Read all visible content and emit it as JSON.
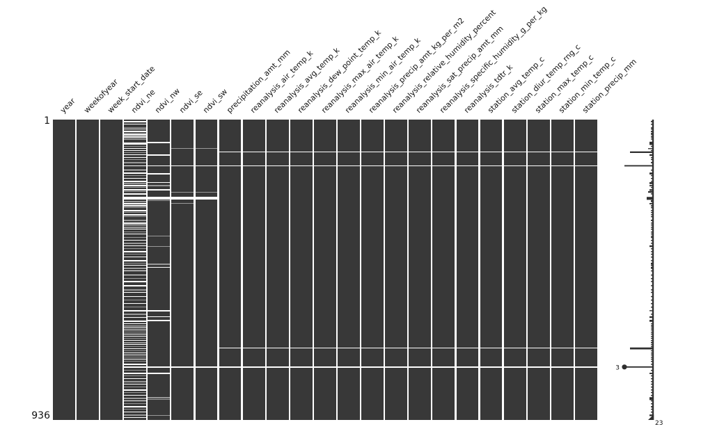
{
  "chart_data": {
    "type": "heatmap",
    "subtype": "missingno-missing-data-matrix",
    "title": "",
    "n_rows": 936,
    "n_cols": 23,
    "row_start_label": "1",
    "row_end_label": "936",
    "columns": [
      "year",
      "weekofyear",
      "week_start_date",
      "ndvi_ne",
      "ndvi_nw",
      "ndvi_se",
      "ndvi_sw",
      "precipitation_amt_mm",
      "reanalysis_air_temp_k",
      "reanalysis_avg_temp_k",
      "reanalysis_dew_point_temp_k",
      "reanalysis_max_air_temp_k",
      "reanalysis_min_air_temp_k",
      "reanalysis_precip_amt_kg_per_m2",
      "reanalysis_relative_humidity_percent",
      "reanalysis_sat_precip_amt_mm",
      "reanalysis_specific_humidity_g_per_kg",
      "reanalysis_tdtr_k",
      "station_avg_temp_c",
      "station_diur_temp_rng_c",
      "station_max_temp_c",
      "station_min_temp_c",
      "station_precip_mm"
    ],
    "colors": {
      "present": "#383838",
      "missing_white": "#ffffff",
      "missing_gray": "#999999",
      "spark": "#2f2f2f",
      "label": "#111111",
      "background": "#ffffff"
    },
    "sparkline": {
      "min_non_null_label": "3",
      "total_cols_label": "23",
      "min_row": 771,
      "legend": "non-null values per row; baseline = all 23 present"
    },
    "stripes": {
      "ndvi_ne": [
        [
          4,
          4,
          "w"
        ],
        [
          13,
          3,
          "w"
        ],
        [
          24,
          3,
          "g"
        ],
        [
          28,
          3,
          "w"
        ],
        [
          35,
          4,
          "w"
        ],
        [
          41,
          4,
          "g"
        ],
        [
          46,
          3,
          "w"
        ],
        [
          52,
          4,
          "w"
        ],
        [
          59,
          3,
          "g"
        ],
        [
          72,
          4,
          "w"
        ],
        [
          76,
          3,
          "w"
        ],
        [
          82,
          3,
          "g"
        ],
        [
          89,
          3,
          "w"
        ],
        [
          95,
          3,
          "w"
        ],
        [
          102,
          2,
          "g"
        ],
        [
          108,
          3,
          "w"
        ],
        [
          117,
          3,
          "w"
        ],
        [
          123,
          3,
          "g"
        ],
        [
          132,
          4,
          "g"
        ],
        [
          156,
          3,
          "w"
        ],
        [
          165,
          4,
          "w"
        ],
        [
          173,
          3,
          "g"
        ],
        [
          182,
          3,
          "w"
        ],
        [
          191,
          3,
          "w"
        ],
        [
          197,
          4,
          "g"
        ],
        [
          204,
          4,
          "w"
        ],
        [
          210,
          3,
          "g"
        ],
        [
          217,
          5,
          "w"
        ],
        [
          223,
          3,
          "g"
        ],
        [
          230,
          3,
          "w"
        ],
        [
          254,
          3,
          "g"
        ],
        [
          260,
          4,
          "w"
        ],
        [
          267,
          4,
          "w"
        ],
        [
          273,
          3,
          "g"
        ],
        [
          282,
          3,
          "w"
        ],
        [
          288,
          3,
          "g"
        ],
        [
          295,
          3,
          "w"
        ],
        [
          301,
          3,
          "g"
        ],
        [
          312,
          4,
          "g"
        ],
        [
          321,
          3,
          "w"
        ],
        [
          327,
          3,
          "w"
        ],
        [
          334,
          3,
          "g"
        ],
        [
          340,
          3,
          "w"
        ],
        [
          349,
          3,
          "g"
        ],
        [
          355,
          3,
          "w"
        ],
        [
          366,
          3,
          "g"
        ],
        [
          375,
          3,
          "w"
        ],
        [
          384,
          3,
          "g"
        ],
        [
          392,
          3,
          "w"
        ],
        [
          401,
          3,
          "g"
        ],
        [
          410,
          3,
          "w"
        ],
        [
          418,
          3,
          "g"
        ],
        [
          427,
          3,
          "w"
        ],
        [
          438,
          3,
          "w"
        ],
        [
          446,
          3,
          "g"
        ],
        [
          453,
          3,
          "w"
        ],
        [
          462,
          3,
          "g"
        ],
        [
          470,
          3,
          "w"
        ],
        [
          483,
          3,
          "w"
        ],
        [
          494,
          3,
          "g"
        ],
        [
          503,
          3,
          "w"
        ],
        [
          516,
          3,
          "w"
        ],
        [
          529,
          3,
          "g"
        ],
        [
          537,
          3,
          "w"
        ],
        [
          550,
          3,
          "w"
        ],
        [
          561,
          3,
          "g"
        ],
        [
          572,
          3,
          "w"
        ],
        [
          583,
          3,
          "g"
        ],
        [
          594,
          3,
          "w"
        ],
        [
          605,
          3,
          "g"
        ],
        [
          615,
          3,
          "w"
        ],
        [
          626,
          4,
          "w"
        ],
        [
          635,
          3,
          "w"
        ],
        [
          641,
          4,
          "g"
        ],
        [
          648,
          3,
          "w"
        ],
        [
          654,
          3,
          "w"
        ],
        [
          661,
          3,
          "g"
        ],
        [
          667,
          3,
          "w"
        ],
        [
          674,
          3,
          "w"
        ],
        [
          680,
          3,
          "g"
        ],
        [
          687,
          3,
          "w"
        ],
        [
          693,
          4,
          "g"
        ],
        [
          700,
          3,
          "w"
        ],
        [
          706,
          3,
          "g"
        ],
        [
          713,
          3,
          "w"
        ],
        [
          719,
          3,
          "g"
        ],
        [
          726,
          3,
          "w"
        ],
        [
          732,
          3,
          "w"
        ],
        [
          739,
          3,
          "g"
        ],
        [
          745,
          3,
          "w"
        ],
        [
          752,
          3,
          "g"
        ],
        [
          761,
          3,
          "w"
        ],
        [
          780,
          3,
          "g"
        ],
        [
          789,
          3,
          "w"
        ],
        [
          797,
          3,
          "g"
        ],
        [
          806,
          3,
          "w"
        ],
        [
          815,
          3,
          "g"
        ],
        [
          823,
          3,
          "w"
        ],
        [
          832,
          3,
          "g"
        ],
        [
          841,
          3,
          "w"
        ],
        [
          849,
          3,
          "g"
        ],
        [
          858,
          3,
          "w"
        ],
        [
          867,
          4,
          "g"
        ],
        [
          875,
          3,
          "w"
        ],
        [
          884,
          3,
          "g"
        ],
        [
          893,
          4,
          "w"
        ],
        [
          901,
          3,
          "g"
        ],
        [
          910,
          3,
          "w"
        ],
        [
          919,
          3,
          "g"
        ],
        [
          927,
          3,
          "w"
        ]
      ],
      "ndvi_nw": [
        [
          69,
          4,
          "w"
        ],
        [
          108,
          5,
          "w"
        ],
        [
          167,
          4,
          "w"
        ],
        [
          195,
          3,
          "w"
        ],
        [
          204,
          3,
          "g"
        ],
        [
          217,
          4,
          "w"
        ],
        [
          251,
          3,
          "g"
        ],
        [
          362,
          3,
          "g"
        ],
        [
          394,
          3,
          "g"
        ],
        [
          449,
          3,
          "g"
        ],
        [
          459,
          3,
          "w"
        ],
        [
          594,
          3,
          "w"
        ],
        [
          613,
          3,
          "w"
        ],
        [
          624,
          4,
          "w"
        ],
        [
          789,
          4,
          "w"
        ],
        [
          865,
          3,
          "g"
        ],
        [
          871,
          3,
          "g"
        ],
        [
          921,
          3,
          "g"
        ]
      ],
      "ndvi_se": [
        [
          89,
          3,
          "g"
        ],
        [
          225,
          3,
          "g"
        ],
        [
          260,
          3,
          "g"
        ]
      ],
      "ndvi_sw": [
        [
          89,
          3,
          "g"
        ],
        [
          225,
          3,
          "g"
        ]
      ]
    },
    "bands": [
      {
        "c0": 3,
        "c1": 6,
        "r0": 241,
        "r1": 250,
        "c": "w",
        "note": "ndvi_ne..ndvi_sw block missing"
      },
      {
        "c0": 7,
        "c1": 22,
        "r0": 99,
        "r1": 102,
        "c": "w",
        "note": "row ~100 missing cols 8-23"
      },
      {
        "c0": 3,
        "c1": 22,
        "r0": 142,
        "r1": 146,
        "c": "w",
        "note": "row ~144 missing cols 4-23 (3 present)"
      },
      {
        "c0": 7,
        "c1": 22,
        "r0": 710,
        "r1": 713,
        "c": "w",
        "note": "row ~711 missing cols 8-23"
      },
      {
        "c0": 3,
        "c1": 22,
        "r0": 769,
        "r1": 773,
        "c": "w",
        "note": "row ~771 missing cols 4-23 (3 present, marked)"
      }
    ]
  }
}
